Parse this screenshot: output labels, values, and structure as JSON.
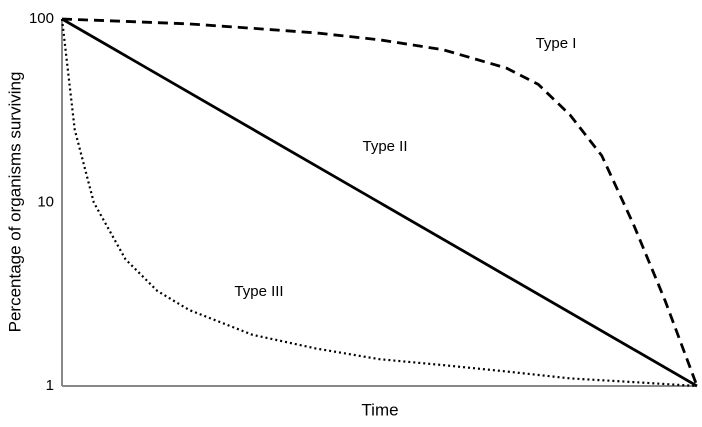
{
  "chart_data": {
    "type": "line",
    "x_label": "Time",
    "y_label": "Percentage of organisms surviving",
    "log_y": true,
    "xlim": [
      0,
      1
    ],
    "ylim": [
      1,
      100
    ],
    "yticks": [
      1,
      10,
      100
    ],
    "series": [
      {
        "name": "Type I",
        "color": "#000000",
        "linestyle": "dashed",
        "x": [
          0,
          0.1,
          0.2,
          0.3,
          0.4,
          0.5,
          0.6,
          0.7,
          0.75,
          0.8,
          0.85,
          0.9,
          0.95,
          1
        ],
        "values": [
          100,
          97,
          94,
          89,
          84,
          77,
          68,
          54,
          44,
          30,
          18,
          7.6,
          2.9,
          1
        ]
      },
      {
        "name": "Type II",
        "color": "#000000",
        "linestyle": "solid",
        "x": [
          0,
          1
        ],
        "values": [
          100,
          1
        ]
      },
      {
        "name": "Type III",
        "color": "#000000",
        "linestyle": "dotted",
        "x": [
          0,
          0.02,
          0.05,
          0.1,
          0.15,
          0.2,
          0.3,
          0.4,
          0.5,
          0.6,
          0.7,
          0.8,
          0.9,
          1
        ],
        "values": [
          100,
          25,
          10,
          4.9,
          3.3,
          2.6,
          1.9,
          1.6,
          1.4,
          1.3,
          1.2,
          1.1,
          1.05,
          1
        ]
      }
    ]
  }
}
